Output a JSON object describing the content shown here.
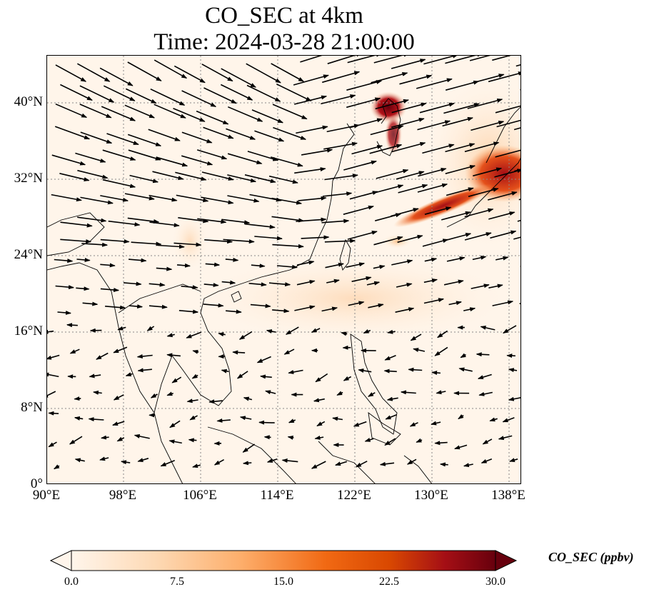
{
  "title_line1": "CO_SEC at 4km",
  "title_line2": "Time: 2024-03-28 21:00:00",
  "map": {
    "lon_range": [
      90,
      139
    ],
    "lat_range": [
      0,
      44.5
    ],
    "x_ticks": [
      "90°E",
      "98°E",
      "106°E",
      "114°E",
      "122°E",
      "130°E",
      "138°E"
    ],
    "y_ticks": [
      "0°",
      "8°N",
      "16°N",
      "24°N",
      "32°N",
      "40°N"
    ],
    "gridlines": true,
    "features": [
      "coastlines",
      "wind vectors",
      "CO_SEC concentration field"
    ]
  },
  "colorbar": {
    "label": "CO_SEC (ppbv)",
    "ticks": [
      "0.0",
      "7.5",
      "15.0",
      "22.5",
      "30.0"
    ],
    "min": 0,
    "max": 30,
    "colormap": [
      "#fff5eb",
      "#fdd9b4",
      "#fdae6b",
      "#f16913",
      "#d94801",
      "#a50f15",
      "#67000d"
    ],
    "extend": "both"
  }
}
